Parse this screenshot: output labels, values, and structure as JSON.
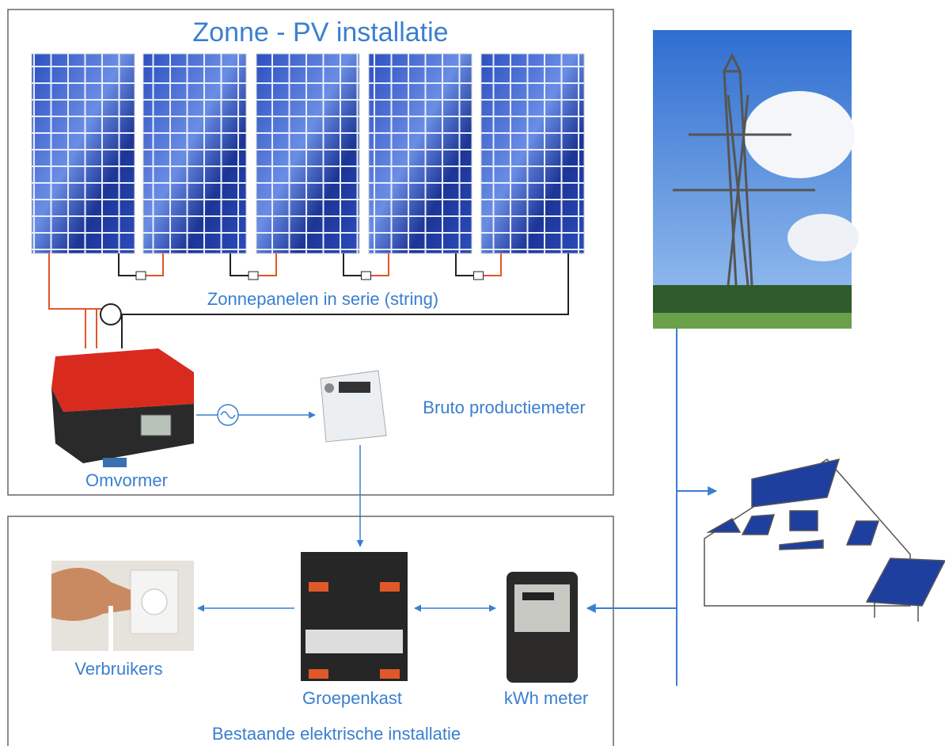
{
  "pv_installation": {
    "title": "Zonne - PV installatie",
    "string_label": "Zonnepanelen in serie (string)",
    "inverter": "Omvormer",
    "production_meter": "Bruto productiemeter"
  },
  "existing_installation": {
    "title": "Bestaande elektrische installatie",
    "distribution_board": "Groepenkast",
    "kwh_meter": "kWh meter",
    "consumers": "Verbruikers"
  }
}
